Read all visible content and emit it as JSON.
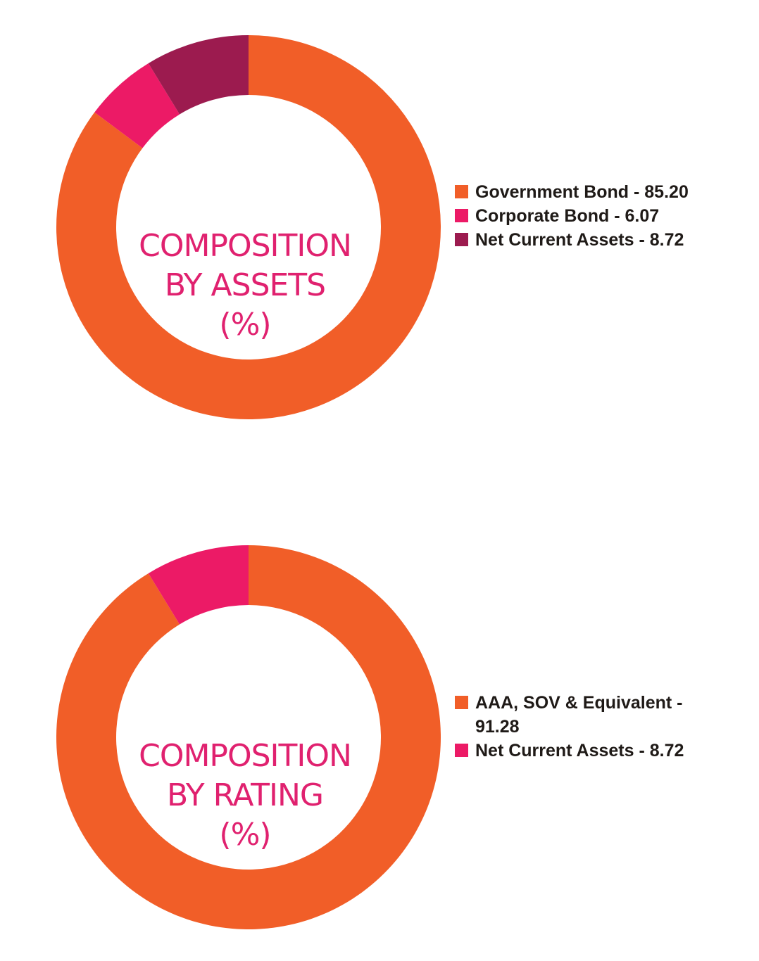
{
  "chart_data": [
    {
      "type": "pie",
      "title_lines": [
        "COMPOSITION",
        "BY ASSETS",
        "(%)"
      ],
      "categories": [
        "Government Bond",
        "Corporate Bond",
        "Net Current Assets"
      ],
      "values": [
        85.2,
        6.07,
        8.72
      ],
      "colors": [
        "#f15e28",
        "#ec1a66",
        "#9c1b4f"
      ],
      "legend_labels": [
        "Government Bond - 85.20",
        "Corporate Bond - 6.07",
        "Net Current Assets - 8.72"
      ],
      "legend_position": "right"
    },
    {
      "type": "pie",
      "title_lines": [
        "COMPOSITION",
        "BY RATING",
        "(%)"
      ],
      "categories": [
        "AAA, SOV & Equivalent",
        "Net Current Assets"
      ],
      "values": [
        91.28,
        8.72
      ],
      "colors": [
        "#f15e28",
        "#ec1a66"
      ],
      "legend_labels": [
        "AAA, SOV & Equivalent - 91.28",
        "Net Current Assets - 8.72"
      ],
      "legend_position": "right"
    }
  ]
}
